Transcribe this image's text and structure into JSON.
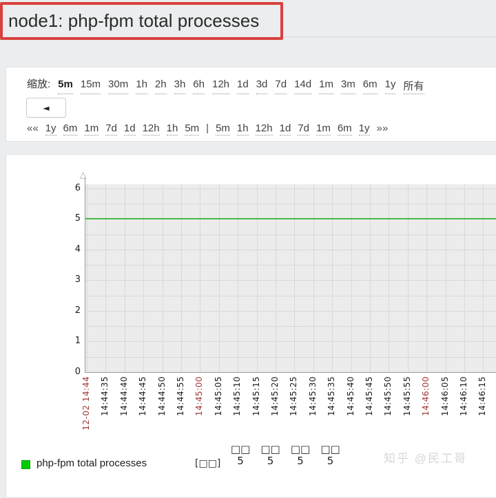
{
  "page": {
    "title": "node1: php-fpm total processes",
    "watermark": "知乎 @民工哥",
    "colors": {
      "accent_red": "#d8413c",
      "series_green": "#46b946",
      "legend_green": "#00cc00",
      "tick_highlight_red": "#9e3734",
      "page_background": "#ebedee",
      "plot_background": "#ececec"
    }
  },
  "controls": {
    "zoom_label": "缩放:",
    "zoom_options": [
      {
        "label": "5m",
        "bold": true
      },
      {
        "label": "15m"
      },
      {
        "label": "30m"
      },
      {
        "label": "1h"
      },
      {
        "label": "2h"
      },
      {
        "label": "3h"
      },
      {
        "label": "6h"
      },
      {
        "label": "12h"
      },
      {
        "label": "1d"
      },
      {
        "label": "3d"
      },
      {
        "label": "7d"
      },
      {
        "label": "14d"
      },
      {
        "label": "1m"
      },
      {
        "label": "3m"
      },
      {
        "label": "6m"
      },
      {
        "label": "1y"
      },
      {
        "label": "所有"
      }
    ],
    "prev_button": "◄",
    "nav_items": [
      {
        "label": "««",
        "plain": true
      },
      {
        "label": "1y"
      },
      {
        "label": "6m"
      },
      {
        "label": "1m"
      },
      {
        "label": "7d"
      },
      {
        "label": "1d"
      },
      {
        "label": "12h"
      },
      {
        "label": "1h"
      },
      {
        "label": "5m"
      },
      {
        "label": "|",
        "plain": true
      },
      {
        "label": "5m"
      },
      {
        "label": "1h"
      },
      {
        "label": "12h"
      },
      {
        "label": "1d"
      },
      {
        "label": "7d"
      },
      {
        "label": "1m"
      },
      {
        "label": "6m"
      },
      {
        "label": "1y"
      },
      {
        "label": "»»",
        "plain": true
      }
    ]
  },
  "chart_data": {
    "type": "line",
    "title": "node1: php-fpm total processes",
    "xlabel": "",
    "ylabel": "",
    "ylim": [
      0,
      6
    ],
    "y_ticks": [
      0,
      1,
      2,
      3,
      4,
      5,
      6
    ],
    "grid": true,
    "legend_position": "bottom",
    "x_ticks": [
      {
        "label": "12-02 14:44",
        "highlight": true
      },
      {
        "label": "14:44:35"
      },
      {
        "label": "14:44:40"
      },
      {
        "label": "14:44:45"
      },
      {
        "label": "14:44:50"
      },
      {
        "label": "14:44:55"
      },
      {
        "label": "14:45:00",
        "highlight": true
      },
      {
        "label": "14:45:05"
      },
      {
        "label": "14:45:10"
      },
      {
        "label": "14:45:15"
      },
      {
        "label": "14:45:20"
      },
      {
        "label": "14:45:25"
      },
      {
        "label": "14:45:30"
      },
      {
        "label": "14:45:35"
      },
      {
        "label": "14:45:40"
      },
      {
        "label": "14:45:45"
      },
      {
        "label": "14:45:50"
      },
      {
        "label": "14:45:55"
      },
      {
        "label": "14:46:00",
        "highlight": true
      },
      {
        "label": "14:46:05"
      },
      {
        "label": "14:46:10"
      },
      {
        "label": "14:46:15"
      }
    ],
    "series": [
      {
        "name": "php-fpm total processes",
        "color": "#46b946",
        "values": [
          5,
          5,
          5,
          5,
          5,
          5,
          5,
          5,
          5,
          5,
          5,
          5,
          5,
          5,
          5,
          5,
          5,
          5,
          5,
          5,
          5,
          5
        ]
      }
    ],
    "y_axis_arrow_icon": "△"
  },
  "legend": {
    "swatch_color": "#00cc00",
    "name": "php-fpm total processes",
    "bracket": "[□□]",
    "columns": [
      {
        "header": "□□",
        "value": "5"
      },
      {
        "header": "□□",
        "value": "5"
      },
      {
        "header": "□□",
        "value": "5"
      },
      {
        "header": "□□",
        "value": "5"
      }
    ]
  }
}
